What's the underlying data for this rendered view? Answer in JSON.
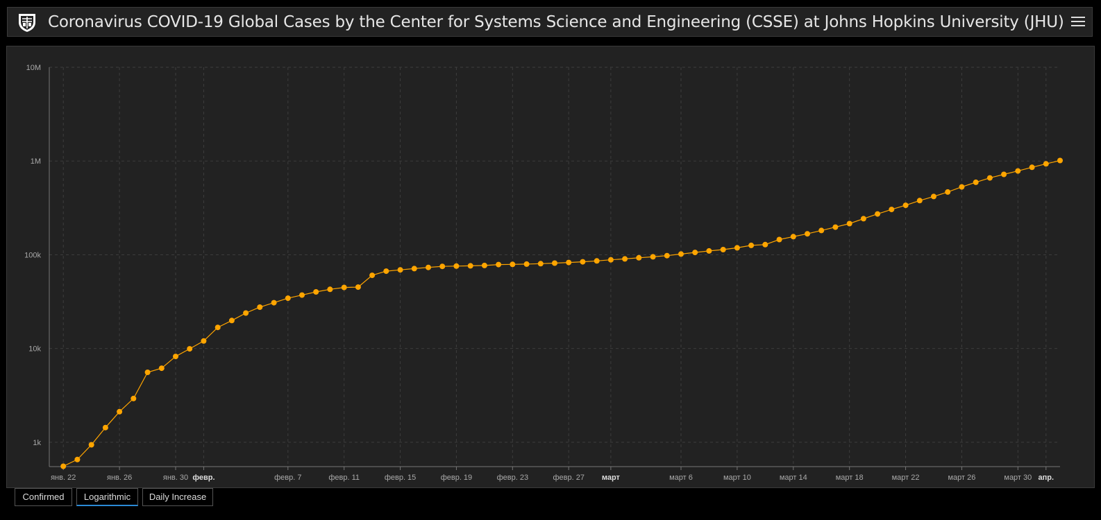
{
  "header": {
    "title": "Coronavirus COVID-19 Global Cases by the Center for Systems Science and Engineering (CSSE) at Johns Hopkins University (JHU)"
  },
  "colors": {
    "background": "#000000",
    "panel": "#222222",
    "series": "#ffa500",
    "active_tab": "#2b8ad6"
  },
  "icons": {
    "logo": "jhu-shield-icon",
    "menu": "hamburger-menu-icon"
  },
  "tabs": [
    {
      "label": "Confirmed",
      "active": false
    },
    {
      "label": "Logarithmic",
      "active": true
    },
    {
      "label": "Daily Increase",
      "active": false
    }
  ],
  "chart_data": {
    "type": "line",
    "title": "",
    "xlabel": "",
    "ylabel": "",
    "y_scale": "log",
    "ylim": [
      550,
      10000000
    ],
    "y_ticks": [
      {
        "value": 1000,
        "label": "1k"
      },
      {
        "value": 10000,
        "label": "10k"
      },
      {
        "value": 100000,
        "label": "100k"
      },
      {
        "value": 1000000,
        "label": "1M"
      },
      {
        "value": 10000000,
        "label": "10M"
      }
    ],
    "x_ticks": [
      {
        "date": "2020-01-22",
        "label": "янв. 22",
        "bold": false
      },
      {
        "date": "2020-01-26",
        "label": "янв. 26",
        "bold": false
      },
      {
        "date": "2020-01-30",
        "label": "янв. 30",
        "bold": false
      },
      {
        "date": "2020-02-01",
        "label": "февр.",
        "bold": true
      },
      {
        "date": "2020-02-07",
        "label": "февр. 7",
        "bold": false
      },
      {
        "date": "2020-02-11",
        "label": "февр. 11",
        "bold": false
      },
      {
        "date": "2020-02-15",
        "label": "февр. 15",
        "bold": false
      },
      {
        "date": "2020-02-19",
        "label": "февр. 19",
        "bold": false
      },
      {
        "date": "2020-02-23",
        "label": "февр. 23",
        "bold": false
      },
      {
        "date": "2020-02-27",
        "label": "февр. 27",
        "bold": false
      },
      {
        "date": "2020-03-01",
        "label": "март",
        "bold": true
      },
      {
        "date": "2020-03-06",
        "label": "март 6",
        "bold": false
      },
      {
        "date": "2020-03-10",
        "label": "март 10",
        "bold": false
      },
      {
        "date": "2020-03-14",
        "label": "март 14",
        "bold": false
      },
      {
        "date": "2020-03-18",
        "label": "март 18",
        "bold": false
      },
      {
        "date": "2020-03-22",
        "label": "март 22",
        "bold": false
      },
      {
        "date": "2020-03-26",
        "label": "март 26",
        "bold": false
      },
      {
        "date": "2020-03-30",
        "label": "март 30",
        "bold": false
      },
      {
        "date": "2020-04-01",
        "label": "апр.",
        "bold": true
      }
    ],
    "grid": true,
    "series": [
      {
        "x_dates": [
          "2020-01-22",
          "2020-01-23",
          "2020-01-24",
          "2020-01-25",
          "2020-01-26",
          "2020-01-27",
          "2020-01-28",
          "2020-01-29",
          "2020-01-30",
          "2020-01-31",
          "2020-02-01",
          "2020-02-02",
          "2020-02-03",
          "2020-02-04",
          "2020-02-05",
          "2020-02-06",
          "2020-02-07",
          "2020-02-08",
          "2020-02-09",
          "2020-02-10",
          "2020-02-11",
          "2020-02-12",
          "2020-02-13",
          "2020-02-14",
          "2020-02-15",
          "2020-02-16",
          "2020-02-17",
          "2020-02-18",
          "2020-02-19",
          "2020-02-20",
          "2020-02-21",
          "2020-02-22",
          "2020-02-23",
          "2020-02-24",
          "2020-02-25",
          "2020-02-26",
          "2020-02-27",
          "2020-02-28",
          "2020-02-29",
          "2020-03-01",
          "2020-03-02",
          "2020-03-03",
          "2020-03-04",
          "2020-03-05",
          "2020-03-06",
          "2020-03-07",
          "2020-03-08",
          "2020-03-09",
          "2020-03-10",
          "2020-03-11",
          "2020-03-12",
          "2020-03-13",
          "2020-03-14",
          "2020-03-15",
          "2020-03-16",
          "2020-03-17",
          "2020-03-18",
          "2020-03-19",
          "2020-03-20",
          "2020-03-21",
          "2020-03-22",
          "2020-03-23",
          "2020-03-24",
          "2020-03-25",
          "2020-03-26",
          "2020-03-27",
          "2020-03-28",
          "2020-03-29",
          "2020-03-30",
          "2020-03-31",
          "2020-04-01",
          "2020-04-02"
        ],
        "values": [
          555,
          654,
          941,
          1434,
          2118,
          2927,
          5578,
          6166,
          8234,
          9927,
          12038,
          16787,
          19881,
          23892,
          27635,
          30817,
          34391,
          37120,
          40150,
          42762,
          44802,
          45221,
          60368,
          66885,
          69030,
          71224,
          73258,
          75136,
          75639,
          76197,
          76819,
          78572,
          78958,
          79561,
          80406,
          81388,
          82746,
          84112,
          86011,
          88369,
          90306,
          92840,
          95120,
          97886,
          101801,
          105847,
          109821,
          113590,
          118620,
          125875,
          128352,
          145205,
          156101,
          167454,
          181574,
          197102,
          214821,
          242570,
          272208,
          304507,
          336953,
          378235,
          418045,
          467653,
          529591,
          593291,
          660706,
          720117,
          782365,
          857487,
          932605,
          1013157
        ]
      }
    ]
  }
}
